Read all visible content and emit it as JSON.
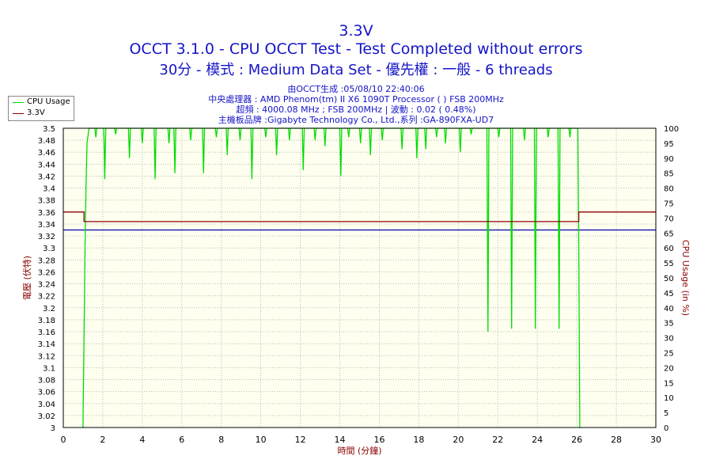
{
  "header": {
    "title": "3.3V",
    "subtitle": "OCCT 3.1.0 - CPU OCCT Test - Test Completed without errors",
    "config": "30分 - 模式 : Medium Data Set - 優先權 : 一般 - 6 threads"
  },
  "info": {
    "generated": "由OCCT生成 :05/08/10 22:40:06",
    "cpu": "中央處理器 : AMD Phenom(tm) II X6 1090T Processor (  ) FSB 200MHz",
    "clock": "超頻 : 4000.08 MHz ; FSB 200MHz | 波動 : 0.02 ( 0.48%)",
    "board": "主機板品牌 :Gigabyte Technology Co., Ltd.,系列 :GA-890FXA-UD7"
  },
  "legend": {
    "items": [
      {
        "label": "CPU Usage",
        "color": "#00dd00"
      },
      {
        "label": "3.3V",
        "color": "#8b0000"
      }
    ]
  },
  "colors": {
    "plot_bg": "#fffff0",
    "grid": "#b8b8b8",
    "cpu_line": "#00dd00",
    "voltage_line": "#8b0000",
    "nominal_line": "#0000aa",
    "axis_label_left": "#8b0000",
    "axis_label_right": "#8b0000",
    "axis_label_bottom": "#8b0000"
  },
  "chart_data": {
    "type": "line",
    "xlabel": "時間 (分鐘)",
    "ylabel_left": "電壓 (伏特)",
    "ylabel_right": "CPU Usage (in %)",
    "xlim": [
      0,
      30
    ],
    "ylim_left": [
      3.0,
      3.5
    ],
    "ylim_right": [
      0,
      100
    ],
    "x_ticks": [
      0,
      2,
      4,
      6,
      8,
      10,
      12,
      14,
      16,
      18,
      20,
      22,
      24,
      26,
      28,
      30
    ],
    "y_left_ticks": [
      "3",
      "3.02",
      "3.04",
      "3.06",
      "3.08",
      "3.1",
      "3.12",
      "3.14",
      "3.16",
      "3.18",
      "3.2",
      "3.22",
      "3.24",
      "3.26",
      "3.28",
      "3.3",
      "3.32",
      "3.34",
      "3.36",
      "3.38",
      "3.4",
      "3.42",
      "3.44",
      "3.46",
      "3.48",
      "3.5"
    ],
    "y_right_ticks": [
      "0",
      "5",
      "10",
      "15",
      "20",
      "25",
      "30",
      "35",
      "40",
      "45",
      "50",
      "55",
      "60",
      "65",
      "70",
      "75",
      "80",
      "85",
      "90",
      "95",
      "100"
    ],
    "grid": true,
    "legend_position": "top-left",
    "series": [
      {
        "name": "3.3V",
        "axis": "left",
        "points": [
          [
            0,
            3.36
          ],
          [
            1.05,
            3.36
          ],
          [
            1.05,
            3.344
          ],
          [
            26.1,
            3.344
          ],
          [
            26.1,
            3.36
          ],
          [
            30,
            3.36
          ]
        ]
      },
      {
        "name": "CPU Usage",
        "axis": "right",
        "points": [
          [
            0.95,
            0
          ],
          [
            1.0,
            0
          ],
          [
            1.0,
            3
          ],
          [
            1.05,
            30
          ],
          [
            1.1,
            60
          ],
          [
            1.15,
            80
          ],
          [
            1.2,
            95
          ],
          [
            1.3,
            100
          ],
          [
            1.6,
            100
          ],
          [
            1.65,
            97
          ],
          [
            1.7,
            100
          ],
          [
            2.05,
            100
          ],
          [
            2.1,
            83
          ],
          [
            2.15,
            100
          ],
          [
            2.6,
            100
          ],
          [
            2.65,
            98
          ],
          [
            2.7,
            100
          ],
          [
            3.3,
            100
          ],
          [
            3.35,
            90
          ],
          [
            3.4,
            100
          ],
          [
            3.95,
            100
          ],
          [
            4.0,
            95
          ],
          [
            4.05,
            100
          ],
          [
            4.6,
            100
          ],
          [
            4.65,
            83
          ],
          [
            4.7,
            100
          ],
          [
            5.3,
            100
          ],
          [
            5.35,
            95
          ],
          [
            5.4,
            100
          ],
          [
            5.6,
            100
          ],
          [
            5.65,
            85
          ],
          [
            5.7,
            100
          ],
          [
            6.4,
            100
          ],
          [
            6.45,
            96
          ],
          [
            6.5,
            100
          ],
          [
            7.05,
            100
          ],
          [
            7.1,
            85
          ],
          [
            7.15,
            100
          ],
          [
            7.7,
            100
          ],
          [
            7.75,
            97
          ],
          [
            7.8,
            100
          ],
          [
            8.25,
            100
          ],
          [
            8.3,
            91
          ],
          [
            8.35,
            100
          ],
          [
            8.9,
            100
          ],
          [
            8.95,
            96
          ],
          [
            9.0,
            100
          ],
          [
            9.5,
            100
          ],
          [
            9.55,
            83
          ],
          [
            9.6,
            100
          ],
          [
            10.2,
            100
          ],
          [
            10.25,
            97
          ],
          [
            10.3,
            100
          ],
          [
            10.75,
            100
          ],
          [
            10.8,
            91
          ],
          [
            10.85,
            100
          ],
          [
            11.4,
            100
          ],
          [
            11.45,
            96
          ],
          [
            11.5,
            100
          ],
          [
            12.1,
            100
          ],
          [
            12.15,
            86
          ],
          [
            12.2,
            100
          ],
          [
            12.7,
            100
          ],
          [
            12.75,
            96
          ],
          [
            12.8,
            100
          ],
          [
            13.2,
            100
          ],
          [
            13.25,
            94
          ],
          [
            13.3,
            100
          ],
          [
            14.0,
            100
          ],
          [
            14.05,
            84
          ],
          [
            14.1,
            100
          ],
          [
            14.4,
            100
          ],
          [
            14.45,
            97
          ],
          [
            14.5,
            100
          ],
          [
            15.0,
            100
          ],
          [
            15.05,
            95
          ],
          [
            15.1,
            100
          ],
          [
            15.5,
            100
          ],
          [
            15.55,
            91
          ],
          [
            15.6,
            100
          ],
          [
            16.1,
            100
          ],
          [
            16.15,
            96
          ],
          [
            16.2,
            100
          ],
          [
            17.1,
            100
          ],
          [
            17.15,
            93
          ],
          [
            17.2,
            100
          ],
          [
            17.85,
            100
          ],
          [
            17.9,
            90
          ],
          [
            17.95,
            100
          ],
          [
            18.3,
            100
          ],
          [
            18.35,
            93
          ],
          [
            18.4,
            100
          ],
          [
            18.85,
            100
          ],
          [
            18.9,
            97
          ],
          [
            18.95,
            100
          ],
          [
            19.3,
            100
          ],
          [
            19.35,
            95
          ],
          [
            19.4,
            100
          ],
          [
            20.05,
            100
          ],
          [
            20.1,
            92
          ],
          [
            20.15,
            100
          ],
          [
            20.6,
            100
          ],
          [
            20.65,
            98
          ],
          [
            20.7,
            100
          ],
          [
            21.45,
            100
          ],
          [
            21.5,
            32
          ],
          [
            21.55,
            100
          ],
          [
            22.0,
            100
          ],
          [
            22.05,
            97
          ],
          [
            22.1,
            100
          ],
          [
            22.65,
            100
          ],
          [
            22.7,
            33
          ],
          [
            22.75,
            100
          ],
          [
            23.3,
            100
          ],
          [
            23.35,
            96
          ],
          [
            23.4,
            100
          ],
          [
            23.85,
            100
          ],
          [
            23.9,
            33
          ],
          [
            23.95,
            100
          ],
          [
            24.5,
            100
          ],
          [
            24.55,
            97
          ],
          [
            24.6,
            100
          ],
          [
            25.05,
            100
          ],
          [
            25.1,
            33
          ],
          [
            25.15,
            100
          ],
          [
            25.6,
            100
          ],
          [
            25.65,
            97
          ],
          [
            25.7,
            100
          ],
          [
            26.05,
            100
          ],
          [
            26.1,
            60
          ],
          [
            26.15,
            0
          ],
          [
            26.2,
            0
          ]
        ]
      },
      {
        "name": "3.3V nominal",
        "axis": "left",
        "points": [
          [
            0,
            3.33
          ],
          [
            30,
            3.33
          ]
        ]
      }
    ]
  }
}
